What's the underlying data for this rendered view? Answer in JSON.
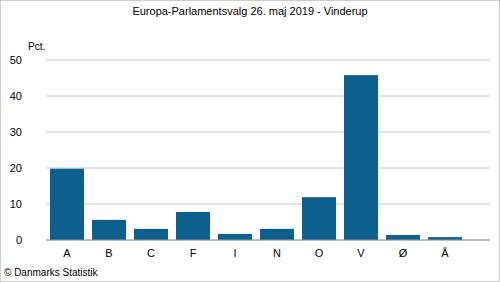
{
  "chart_data": {
    "type": "bar",
    "title": "Europa-Parlamentsvalg 26. maj 2019 - Vinderup",
    "y_label": "Pct.",
    "source": "© Danmarks Statistik",
    "categories": [
      "A",
      "B",
      "C",
      "F",
      "I",
      "N",
      "O",
      "V",
      "Ø",
      "Å"
    ],
    "values": [
      19.8,
      5.6,
      3.1,
      7.8,
      1.7,
      3.1,
      11.9,
      45.8,
      1.4,
      0.8
    ],
    "color": "#0d5f8e",
    "ylim": [
      0,
      50
    ],
    "yticks": [
      0,
      10,
      20,
      30,
      40,
      50
    ],
    "grid": true
  }
}
